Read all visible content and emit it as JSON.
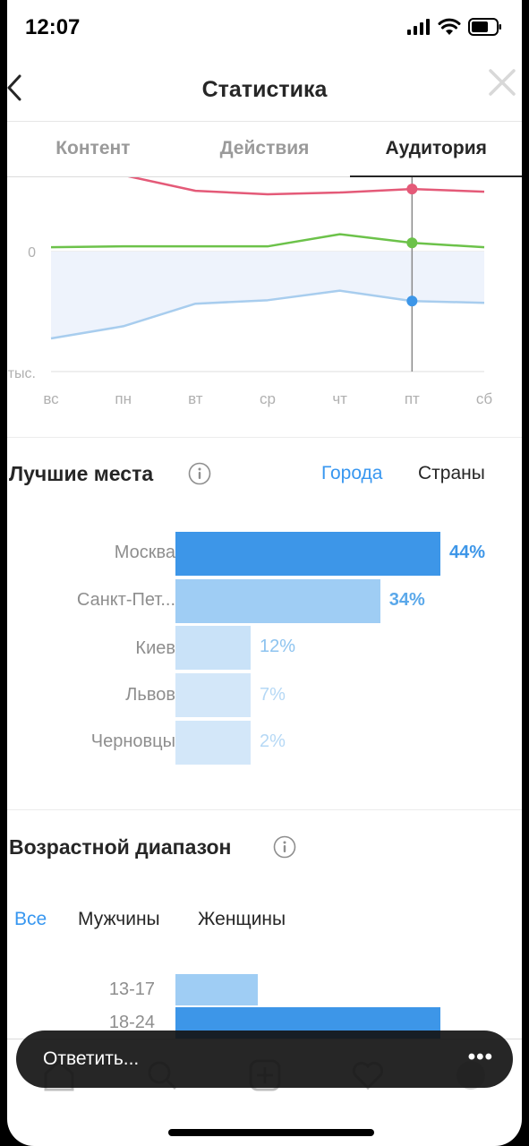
{
  "status_bar": {
    "time": "12:07"
  },
  "header": {
    "title": "Статистика"
  },
  "tabs": [
    {
      "label": "Контент"
    },
    {
      "label": "Действия"
    },
    {
      "label": "Аудитория"
    }
  ],
  "chart_data": {
    "type": "line",
    "categories": [
      "вс",
      "пн",
      "вт",
      "ср",
      "чт",
      "пт",
      "сб"
    ],
    "y_tick_labels": [
      "0",
      "тыс."
    ],
    "highlighted_category": "пт",
    "series": [
      {
        "color": "#e45a78",
        "values": [
          1,
          0.88,
          0.7,
          0.66,
          0.68,
          0.72,
          0.69
        ]
      },
      {
        "color": "#6cc24a",
        "values": [
          0.05,
          0.06,
          0.06,
          0.06,
          0.2,
          0.1,
          0.05
        ]
      },
      {
        "color": "#a8cdee",
        "values": [
          -1.0,
          -0.86,
          -0.6,
          -0.56,
          -0.45,
          -0.57,
          -0.59
        ]
      }
    ]
  },
  "places": {
    "title": "Лучшие места",
    "filters": {
      "active": "Города",
      "inactive": "Страны"
    },
    "items": [
      {
        "name": "Москва",
        "percent": 44,
        "label": "44%"
      },
      {
        "name": "Санкт-Пет...",
        "percent": 34,
        "label": "34%"
      },
      {
        "name": "Киев",
        "percent": 12,
        "label": "12%"
      },
      {
        "name": "Львов",
        "percent": 7,
        "label": "7%"
      },
      {
        "name": "Черновцы",
        "percent": 2,
        "label": "2%"
      }
    ]
  },
  "age": {
    "title": "Возрастной диапазон",
    "filters": [
      "Все",
      "Мужчины",
      "Женщины"
    ],
    "items": [
      {
        "range": "13-17",
        "percent": 31
      },
      {
        "range": "18-24",
        "percent": 100
      }
    ]
  },
  "reply": {
    "placeholder": "Ответить...",
    "more": "•••"
  }
}
